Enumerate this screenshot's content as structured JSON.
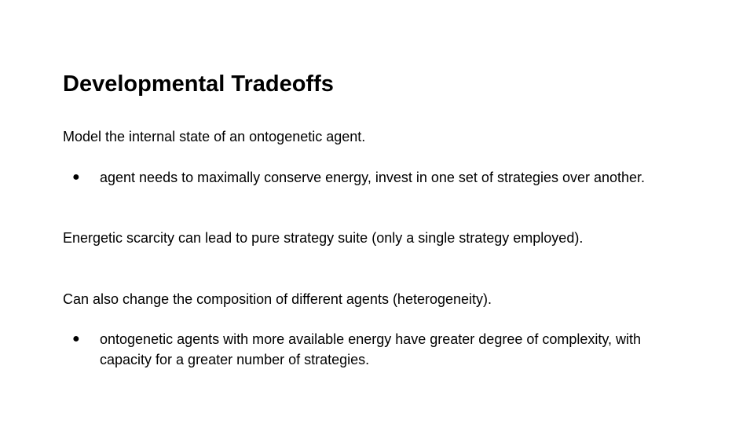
{
  "slide": {
    "title": "Developmental Tradeoffs",
    "paragraph_1": "Model the internal state of an ontogenetic agent.",
    "bullet_1": {
      "marker": "●",
      "text": "agent needs to maximally conserve energy, invest in one set of strategies over another."
    },
    "paragraph_2": "Energetic scarcity can lead to pure strategy suite (only a single strategy employed).",
    "paragraph_3": "Can also change the composition of different agents (heterogeneity).",
    "bullet_2": {
      "marker": "●",
      "line_1": "ontogenetic agents with more available energy have greater degree of complexity, with",
      "line_2": "capacity for a greater number of strategies."
    }
  }
}
